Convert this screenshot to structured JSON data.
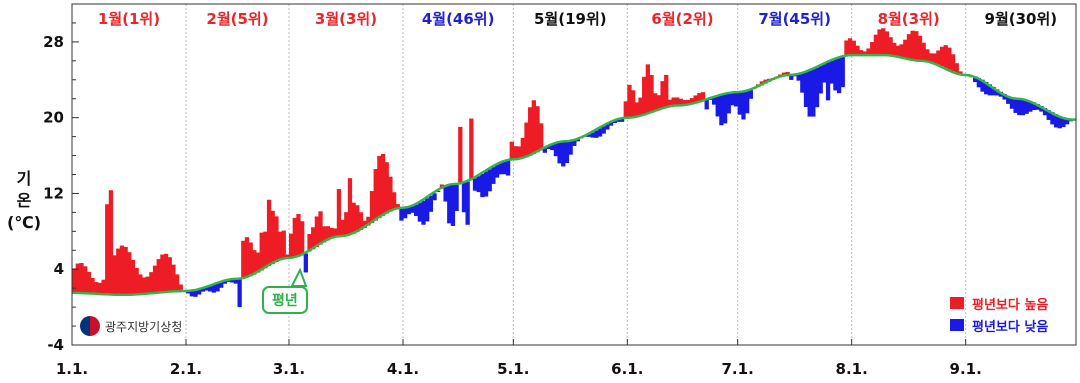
{
  "chart_data": {
    "type": "area",
    "ylabel": "기온(℃)",
    "ylim": [
      -4,
      32
    ],
    "y_ticks": [
      -4,
      4,
      12,
      20,
      28
    ],
    "x_tick_labels": [
      "1.1.",
      "2.1.",
      "3.1.",
      "4.1.",
      "5.1.",
      "6.1.",
      "7.1.",
      "8.1.",
      "9.1."
    ],
    "month_rank_labels": [
      {
        "text": "1월(1위)",
        "color": "#e8262b"
      },
      {
        "text": "2월(5위)",
        "color": "#e8262b"
      },
      {
        "text": "3월(3위)",
        "color": "#e8262b"
      },
      {
        "text": "4월(46위)",
        "color": "#2222cc"
      },
      {
        "text": "5월(19위)",
        "color": "#111111"
      },
      {
        "text": "6월(2위)",
        "color": "#e8262b"
      },
      {
        "text": "7월(45위)",
        "color": "#2222cc"
      },
      {
        "text": "8월(3위)",
        "color": "#e8262b"
      },
      {
        "text": "9월(30위)",
        "color": "#111111"
      }
    ],
    "normal_series_name": "평년",
    "normal_keypoints": {
      "x": [
        "1.1.",
        "1.15.",
        "2.1.",
        "2.15.",
        "3.1.",
        "3.15.",
        "4.1.",
        "4.15.",
        "5.1.",
        "5.15.",
        "6.1.",
        "6.15.",
        "7.1.",
        "7.15.",
        "8.1.",
        "8.10.",
        "8.20.",
        "9.1.",
        "9.15.",
        "9.30."
      ],
      "y": [
        1.5,
        1.3,
        1.7,
        3.0,
        5.2,
        7.5,
        10.5,
        13.0,
        15.6,
        17.5,
        20.0,
        21.3,
        22.7,
        24.5,
        26.6,
        26.6,
        26.0,
        24.5,
        22.0,
        19.8
      ]
    },
    "series": [
      {
        "name": "평년보다 높음",
        "color": "#ee1c25"
      },
      {
        "name": "평년보다 낮음",
        "color": "#1a1ae6"
      }
    ],
    "normal_color": "#33b54a",
    "colors": {
      "above": "#ee1c25",
      "below": "#1a1ae6",
      "normal": "#33b54a",
      "grid": "#bbbbbb"
    }
  },
  "legend": {
    "above_label": "평년보다 높음",
    "below_label": "평년보다 낮음"
  },
  "callout": {
    "text": "평년"
  },
  "ylabel_lines": [
    "기",
    "온",
    "(℃)"
  ],
  "logo": {
    "text": "광주지방기상청"
  }
}
